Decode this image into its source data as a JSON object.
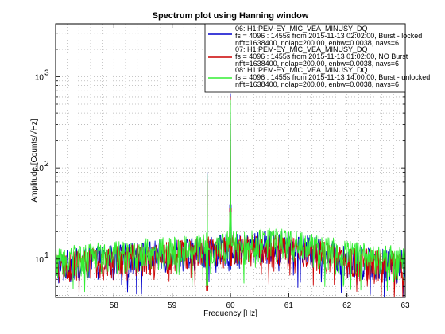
{
  "chart_data": {
    "type": "line",
    "title": "Spectrum plot using Hanning window",
    "xlabel": "Frequency [Hz]",
    "ylabel": "Amplitude [Counts/√Hz]",
    "x_scale": "linear",
    "y_scale": "log",
    "xlim": [
      57,
      63
    ],
    "ylim": [
      3.8,
      3800
    ],
    "x_ticks": [
      58,
      59,
      60,
      61,
      62,
      63
    ],
    "x_tick_labels": [
      "58",
      "59",
      "60",
      "61",
      "62",
      "63"
    ],
    "y_ticks": [
      10,
      100,
      1000
    ],
    "y_tick_labels": [
      "10",
      "10",
      "10"
    ],
    "y_tick_exponents": [
      "1",
      "2",
      "3"
    ],
    "grid": true,
    "legend_position": "top-right",
    "series": [
      {
        "name": "06: H1:PEM-EY_MIC_VEA_MINUSY_DQ",
        "legend_lines": [
          "fs = 4096 : 1455s from 2015-11-13 02:02:00,   Burst - locked",
          "nfft=1638400, nolap=200.00, enbw=0.0038, navs=6"
        ],
        "color": "#0000cc",
        "x": [
          57.0,
          57.3,
          57.6,
          57.9,
          58.2,
          58.5,
          58.8,
          59.1,
          59.4,
          59.55,
          59.6,
          59.65,
          59.8,
          59.95,
          60.0,
          60.05,
          60.2,
          60.4,
          60.6,
          60.9,
          61.2,
          61.5,
          61.8,
          62.1,
          62.4,
          62.7,
          63.0
        ],
        "values": [
          9,
          10,
          10.5,
          11,
          11.5,
          12,
          12.5,
          13,
          13.5,
          14,
          90,
          14,
          14,
          15,
          650,
          15,
          14,
          15,
          16,
          15.5,
          14.5,
          13.5,
          12,
          11,
          10.5,
          10,
          9.5
        ]
      },
      {
        "name": "07: H1:PEM-EY_MIC_VEA_MINUSY_DQ",
        "legend_lines": [
          "fs = 4096 : 1455s from 2015-11-13 01:02:00,   NO Burst",
          "nfft=1638400, nolap=200.00, enbw=0.0038, navs=6"
        ],
        "color": "#cc0000",
        "x": [
          57.0,
          57.3,
          57.6,
          57.9,
          58.2,
          58.5,
          58.8,
          59.1,
          59.4,
          59.55,
          59.6,
          59.65,
          59.8,
          59.95,
          60.0,
          60.05,
          60.2,
          60.4,
          60.6,
          60.9,
          61.2,
          61.5,
          61.8,
          62.1,
          62.4,
          62.7,
          63.0
        ],
        "values": [
          8.5,
          9.5,
          10,
          10.5,
          11,
          11.5,
          12,
          12.5,
          13,
          13.5,
          75,
          13.5,
          13.5,
          14,
          600,
          14.5,
          13.5,
          14,
          15,
          14.5,
          13.5,
          12.5,
          11.5,
          10.5,
          10,
          9.5,
          9
        ]
      },
      {
        "name": "08: H1:PEM-EY_MIC_VEA_MINUSY_DQ",
        "legend_lines": [
          "fs = 4096 : 1455s from 2015-11-13 14:00:00,   Burst - unlocked",
          "nfft=1638400, nolap=200.00, enbw=0.0038, navs=6"
        ],
        "color": "#33ee33",
        "x": [
          57.0,
          57.3,
          57.6,
          57.9,
          58.2,
          58.5,
          58.8,
          59.1,
          59.4,
          59.55,
          59.6,
          59.65,
          59.8,
          59.95,
          60.0,
          60.05,
          60.2,
          60.4,
          60.6,
          60.9,
          61.2,
          61.5,
          61.8,
          62.1,
          62.4,
          62.7,
          63.0
        ],
        "values": [
          10,
          11,
          11.5,
          12,
          12.5,
          13,
          13.5,
          14,
          14.5,
          15,
          85,
          15,
          15,
          16,
          550,
          16,
          15,
          16,
          17,
          16.5,
          15.5,
          14.5,
          13,
          12,
          11.5,
          11,
          10.5
        ]
      }
    ]
  }
}
